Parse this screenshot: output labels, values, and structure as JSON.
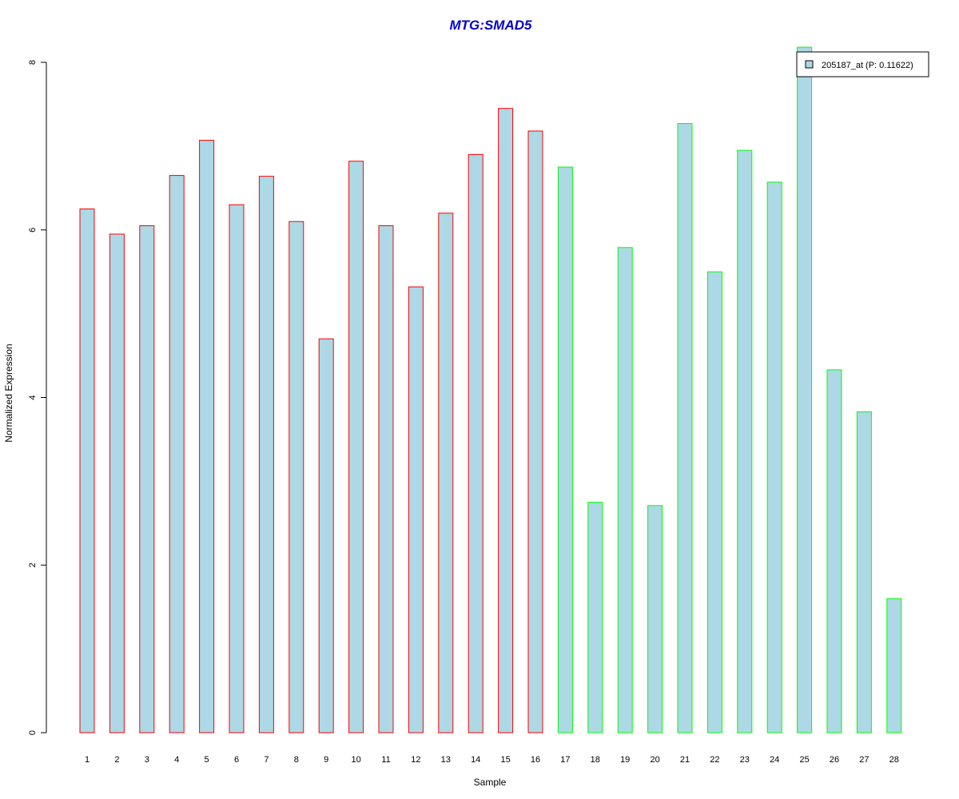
{
  "chart_data": {
    "type": "bar",
    "title": "MTG:SMAD5",
    "xlabel": "Sample",
    "ylabel": "Normalized Expression",
    "ylim": [
      0,
      8
    ],
    "yticks": [
      "0",
      "2",
      "4",
      "6",
      "8"
    ],
    "categories": [
      "1",
      "2",
      "3",
      "4",
      "5",
      "6",
      "7",
      "8",
      "9",
      "10",
      "11",
      "12",
      "13",
      "14",
      "15",
      "16",
      "17",
      "18",
      "19",
      "20",
      "21",
      "22",
      "23",
      "24",
      "25",
      "26",
      "27",
      "28"
    ],
    "values": [
      6.25,
      5.95,
      6.05,
      6.65,
      7.07,
      6.3,
      6.64,
      6.1,
      4.7,
      6.82,
      6.05,
      5.32,
      6.2,
      6.9,
      7.45,
      7.18,
      6.75,
      2.75,
      5.79,
      2.71,
      7.27,
      5.5,
      6.95,
      6.57,
      8.18,
      4.33,
      3.83,
      1.6
    ],
    "groups": [
      "red",
      "red",
      "red",
      "red",
      "red",
      "red",
      "red",
      "red",
      "red",
      "red",
      "red",
      "red",
      "red",
      "red",
      "red",
      "red",
      "green",
      "green",
      "green",
      "green",
      "green",
      "green",
      "green",
      "green",
      "green",
      "green",
      "green",
      "green"
    ],
    "fill_color": "#add8e6",
    "group_colors": {
      "red": "#ff0000",
      "green": "#00ff00"
    },
    "title_color": "#0000cd",
    "grid": false,
    "legend": {
      "position": "top-right",
      "label": "205187_at (P: 0.11622)"
    }
  }
}
